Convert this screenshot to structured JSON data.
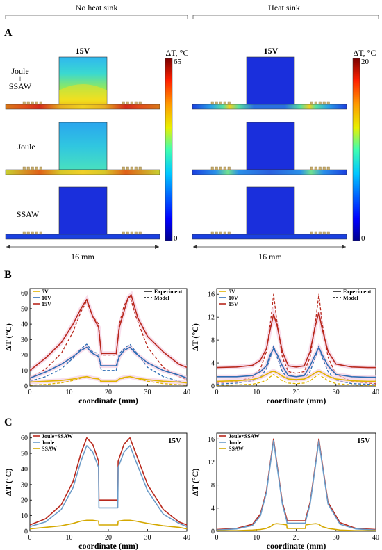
{
  "headers": {
    "left": "No heat sink",
    "right": "Heat sink"
  },
  "panel_letters": {
    "a": "A",
    "b": "B",
    "c": "C"
  },
  "section_a": {
    "row_labels": [
      "Joule\n+\nSSAW",
      "Joule",
      "SSAW"
    ],
    "voltage_label": "15V",
    "colorbar_title": "ΔT, °C",
    "left_colorbar": {
      "max": "65",
      "min": "0"
    },
    "right_colorbar": {
      "max": "20",
      "min": "0"
    },
    "scale_label": "16 mm",
    "colors": {
      "hot": "#d42a1a",
      "warm": "#f5e61c",
      "mid": "#39d7c6",
      "cool": "#2a7fe0",
      "cold": "#1a2fdc",
      "electrode": "#c8b072"
    }
  },
  "chart_data": [
    {
      "type": "line",
      "id": "B-left",
      "xlabel": "coordinate (mm)",
      "ylabel": "ΔT (°C)",
      "xlim": [
        0,
        40
      ],
      "ylim": [
        0,
        63
      ],
      "xticks": [
        0,
        10,
        20,
        30,
        40
      ],
      "yticks": [
        0,
        10,
        20,
        30,
        40,
        50,
        60
      ],
      "legend_left": [
        {
          "name": "5V",
          "color": "#e0b400"
        },
        {
          "name": "10V",
          "color": "#2e6db4"
        },
        {
          "name": "15V",
          "color": "#b8281c"
        }
      ],
      "legend_right": [
        {
          "name": "Experiment",
          "style": "solid"
        },
        {
          "name": "Model",
          "style": "dashed"
        }
      ],
      "series": [
        {
          "name": "15V",
          "color": "#b8281c",
          "style": "solid",
          "x": [
            0,
            4,
            8,
            11,
            13,
            14.5,
            16,
            17.5,
            18.2,
            20,
            22,
            22.8,
            23.5,
            25,
            25.8,
            27.5,
            30,
            34,
            38,
            40
          ],
          "y": [
            10,
            18,
            28,
            40,
            50,
            56,
            45,
            38,
            21,
            21,
            21,
            38,
            44,
            57,
            59,
            44,
            32,
            22,
            14,
            12
          ]
        },
        {
          "name": "15V",
          "color": "#b8281c",
          "style": "dashed",
          "x": [
            0,
            4,
            8,
            11,
            13,
            14.5,
            16,
            17.5,
            18.2,
            20,
            22,
            22.8,
            24,
            25.5,
            27,
            30,
            34,
            38,
            40
          ],
          "y": [
            5,
            11,
            21,
            35,
            48,
            55,
            45,
            40,
            20,
            20,
            20,
            40,
            52,
            58,
            45,
            25,
            12,
            6,
            4
          ]
        },
        {
          "name": "10V",
          "color": "#2e6db4",
          "style": "solid",
          "x": [
            0,
            4,
            8,
            11,
            13,
            14.5,
            16,
            17.5,
            18.2,
            20,
            22,
            22.8,
            24,
            25.5,
            27,
            30,
            34,
            38,
            40
          ],
          "y": [
            5,
            9,
            14,
            19,
            23,
            25,
            21,
            19,
            13,
            13,
            13,
            19,
            23,
            25,
            21,
            15,
            10,
            7,
            5
          ]
        },
        {
          "name": "10V",
          "color": "#2e6db4",
          "style": "dashed",
          "x": [
            0,
            4,
            8,
            11,
            13,
            14.5,
            16,
            17.5,
            18.2,
            20,
            22,
            22.8,
            24,
            25.5,
            27,
            30,
            34,
            38,
            40
          ],
          "y": [
            3,
            6,
            11,
            18,
            24,
            27,
            22,
            21,
            10,
            10,
            10,
            21,
            24,
            27,
            22,
            12,
            6,
            3,
            2
          ]
        },
        {
          "name": "5V",
          "color": "#e0b400",
          "style": "solid",
          "x": [
            0,
            4,
            8,
            11,
            13,
            14.5,
            16,
            17.5,
            18.2,
            20,
            22,
            22.8,
            24,
            25.5,
            27,
            30,
            34,
            38,
            40
          ],
          "y": [
            2.5,
            3,
            3.5,
            4.5,
            5.5,
            6,
            5,
            4.5,
            3,
            3,
            3,
            4.5,
            5.5,
            6,
            5,
            4,
            3,
            2.5,
            2
          ]
        },
        {
          "name": "5V",
          "color": "#e0b400",
          "style": "dashed",
          "x": [
            0,
            4,
            8,
            11,
            13,
            14.5,
            16,
            17.5,
            18.2,
            20,
            22,
            22.8,
            24,
            25.5,
            27,
            30,
            34,
            38,
            40
          ],
          "y": [
            0.5,
            1,
            2,
            3.5,
            5,
            6,
            5,
            4.5,
            2.5,
            2.5,
            2.5,
            4.5,
            5,
            6,
            5,
            3,
            1.5,
            0.8,
            0.5
          ]
        }
      ]
    },
    {
      "type": "line",
      "id": "B-right",
      "xlabel": "coordinate (mm)",
      "ylabel": "ΔT (°C)",
      "xlim": [
        0,
        40
      ],
      "ylim": [
        0,
        17
      ],
      "xticks": [
        0,
        10,
        20,
        30,
        40
      ],
      "yticks": [
        0,
        4,
        8,
        12,
        16
      ],
      "legend_left": [
        {
          "name": "5V",
          "color": "#e0b400"
        },
        {
          "name": "10V",
          "color": "#2e6db4"
        },
        {
          "name": "15V",
          "color": "#b8281c"
        }
      ],
      "legend_right": [
        {
          "name": "Experiment",
          "style": "solid"
        },
        {
          "name": "Model",
          "style": "dashed"
        }
      ],
      "series": [
        {
          "name": "15V",
          "color": "#b8281c",
          "style": "solid",
          "x": [
            0,
            5,
            9,
            11,
            12.5,
            13.5,
            14.3,
            15.2,
            16.5,
            18,
            20,
            22,
            23.5,
            24.8,
            25.7,
            26.5,
            28,
            30,
            34,
            38,
            40
          ],
          "y": [
            3.2,
            3.3,
            3.6,
            4.5,
            6.5,
            10,
            12.5,
            10.5,
            6,
            3.5,
            3.3,
            3.5,
            6,
            10.5,
            12.8,
            10,
            6,
            3.8,
            3.3,
            3.2,
            3.2
          ]
        },
        {
          "name": "15V",
          "color": "#b8281c",
          "style": "dashed",
          "x": [
            0,
            5,
            9,
            11,
            12.5,
            13.5,
            14.3,
            15.2,
            16.5,
            18,
            20,
            22,
            23.5,
            24.8,
            25.7,
            26.5,
            28,
            30,
            34,
            38,
            40
          ],
          "y": [
            0.5,
            0.8,
            1.5,
            3,
            6,
            11,
            16,
            11,
            5,
            2.5,
            2.2,
            2.5,
            5,
            11,
            16,
            11,
            5,
            2,
            0.8,
            0.5,
            0.4
          ]
        },
        {
          "name": "10V",
          "color": "#2e6db4",
          "style": "solid",
          "x": [
            0,
            5,
            9,
            11,
            12.5,
            13.5,
            14.3,
            15.2,
            16.5,
            18,
            20,
            22,
            23.5,
            24.8,
            25.7,
            26.5,
            28,
            30,
            34,
            38,
            40
          ],
          "y": [
            1.6,
            1.6,
            1.8,
            2.5,
            3.5,
            5.5,
            6.5,
            5.5,
            3.5,
            1.8,
            1.6,
            1.8,
            3.5,
            5.5,
            6.7,
            5.5,
            3.5,
            2,
            1.6,
            1.5,
            1.5
          ]
        },
        {
          "name": "10V",
          "color": "#2e6db4",
          "style": "dashed",
          "x": [
            0,
            5,
            9,
            11,
            12.5,
            13.5,
            14.3,
            15.2,
            16.5,
            18,
            20,
            22,
            23.5,
            24.8,
            25.7,
            26.5,
            28,
            30,
            34,
            38,
            40
          ],
          "y": [
            0.3,
            0.5,
            0.9,
            1.5,
            3,
            5,
            7,
            5,
            2.5,
            1.2,
            1,
            1.2,
            2.5,
            5,
            7,
            5,
            2.5,
            1,
            0.4,
            0.3,
            0.2
          ]
        },
        {
          "name": "5V",
          "color": "#e0b400",
          "style": "solid",
          "x": [
            0,
            5,
            9,
            11,
            12.5,
            13.5,
            14.3,
            15.2,
            16.5,
            18,
            20,
            22,
            23.5,
            24.8,
            25.7,
            26.5,
            28,
            30,
            34,
            38,
            40
          ],
          "y": [
            0.8,
            0.9,
            1.1,
            1.5,
            2,
            2.4,
            2.6,
            2.3,
            1.7,
            1.2,
            1.1,
            1.2,
            1.7,
            2.3,
            2.6,
            2.3,
            1.7,
            1.2,
            0.9,
            0.8,
            0.8
          ]
        },
        {
          "name": "5V",
          "color": "#e0b400",
          "style": "dashed",
          "x": [
            0,
            5,
            9,
            11,
            12.5,
            13.5,
            14.3,
            15.2,
            16.5,
            18,
            20,
            22,
            23.5,
            24.8,
            25.7,
            26.5,
            28,
            30,
            34,
            38,
            40
          ],
          "y": [
            0.1,
            0.2,
            0.3,
            0.6,
            1,
            1.6,
            2,
            1.6,
            0.9,
            0.5,
            0.4,
            0.5,
            0.9,
            1.6,
            2,
            1.6,
            0.9,
            0.4,
            0.2,
            0.1,
            0.1
          ]
        }
      ]
    },
    {
      "type": "line",
      "id": "C-left",
      "xlabel": "coordinate (mm)",
      "ylabel": "ΔT (°C)",
      "annotation": "15V",
      "xlim": [
        0,
        40
      ],
      "ylim": [
        0,
        63
      ],
      "xticks": [
        0,
        10,
        20,
        30,
        40
      ],
      "yticks": [
        0,
        10,
        20,
        30,
        40,
        50,
        60
      ],
      "legend_left": [
        {
          "name": "Joule+SSAW",
          "color": "#b8281c"
        },
        {
          "name": "Joule",
          "color": "#6a9bc8"
        },
        {
          "name": "SSAW",
          "color": "#d4a800"
        }
      ],
      "series": [
        {
          "name": "Joule+SSAW",
          "color": "#b8281c",
          "style": "solid",
          "x": [
            0,
            4,
            8,
            11,
            13,
            14.5,
            16,
            17.5,
            17.6,
            20,
            22.4,
            22.5,
            24,
            25.5,
            27,
            30,
            34,
            38,
            40
          ],
          "y": [
            4,
            8,
            17,
            32,
            50,
            60,
            56,
            45,
            20,
            20,
            20,
            45,
            56,
            60,
            50,
            30,
            14,
            6,
            4
          ]
        },
        {
          "name": "Joule",
          "color": "#6a9bc8",
          "style": "solid",
          "x": [
            0,
            4,
            8,
            11,
            13,
            14.5,
            16,
            17.5,
            17.6,
            20,
            22.4,
            22.5,
            24,
            25.5,
            27,
            30,
            34,
            38,
            40
          ],
          "y": [
            3,
            6,
            14,
            28,
            45,
            55,
            51,
            41,
            15,
            15,
            15,
            41,
            51,
            55,
            45,
            26,
            11,
            5,
            3
          ]
        },
        {
          "name": "SSAW",
          "color": "#d4a800",
          "style": "solid",
          "x": [
            0,
            4,
            8,
            11,
            13,
            14.5,
            16,
            17.5,
            17.6,
            20,
            22.4,
            22.5,
            24,
            25.5,
            27,
            30,
            34,
            38,
            40
          ],
          "y": [
            1.5,
            2.5,
            3.5,
            5,
            6.5,
            7,
            7,
            6.5,
            4,
            4,
            4,
            6.5,
            7,
            7,
            6.5,
            5,
            3.5,
            2.5,
            1.5
          ]
        }
      ]
    },
    {
      "type": "line",
      "id": "C-right",
      "xlabel": "coordinate (mm)",
      "ylabel": "ΔT (°C)",
      "annotation": "15V",
      "xlim": [
        0,
        40
      ],
      "ylim": [
        0,
        17
      ],
      "xticks": [
        0,
        10,
        20,
        30,
        40
      ],
      "yticks": [
        0,
        4,
        8,
        12,
        16
      ],
      "legend_left": [
        {
          "name": "Joule+SSAW",
          "color": "#b8281c"
        },
        {
          "name": "Joule",
          "color": "#6a9bc8"
        },
        {
          "name": "SSAW",
          "color": "#d4a800"
        }
      ],
      "series": [
        {
          "name": "Joule+SSAW",
          "color": "#b8281c",
          "style": "solid",
          "x": [
            0,
            5,
            9,
            11,
            12.5,
            13.5,
            14.3,
            15.1,
            16.5,
            17.6,
            17.7,
            20,
            22.3,
            22.4,
            23.5,
            24.9,
            25.7,
            26.5,
            28,
            31,
            35,
            40
          ],
          "y": [
            0.3,
            0.5,
            1.2,
            3,
            7,
            12,
            16,
            12,
            5,
            2.2,
            1.8,
            1.8,
            1.8,
            2.2,
            5,
            12,
            16,
            12,
            5,
            1.5,
            0.5,
            0.3
          ]
        },
        {
          "name": "Joule",
          "color": "#6a9bc8",
          "style": "solid",
          "x": [
            0,
            5,
            9,
            11,
            12.5,
            13.5,
            14.3,
            15.1,
            16.5,
            17.6,
            17.7,
            20,
            22.3,
            22.4,
            23.5,
            24.9,
            25.7,
            26.5,
            28,
            31,
            35,
            40
          ],
          "y": [
            0.2,
            0.4,
            1,
            2.7,
            6.7,
            11.7,
            15.7,
            11.7,
            4.7,
            1.8,
            1.4,
            1.4,
            1.4,
            1.8,
            4.7,
            11.7,
            15.7,
            11.7,
            4.7,
            1.2,
            0.4,
            0.2
          ]
        },
        {
          "name": "SSAW",
          "color": "#d4a800",
          "style": "solid",
          "x": [
            0,
            5,
            9,
            11,
            12.5,
            13.5,
            14.3,
            15.1,
            16.5,
            17.6,
            17.7,
            20,
            22.3,
            22.4,
            23.5,
            24.9,
            25.7,
            26.5,
            28,
            31,
            35,
            40
          ],
          "y": [
            0.1,
            0.1,
            0.2,
            0.3,
            0.5,
            0.8,
            1.2,
            1.3,
            1.2,
            1.1,
            0.5,
            0.5,
            0.5,
            1.1,
            1.2,
            1.3,
            1.2,
            0.8,
            0.5,
            0.2,
            0.1,
            0.1
          ]
        }
      ]
    }
  ]
}
